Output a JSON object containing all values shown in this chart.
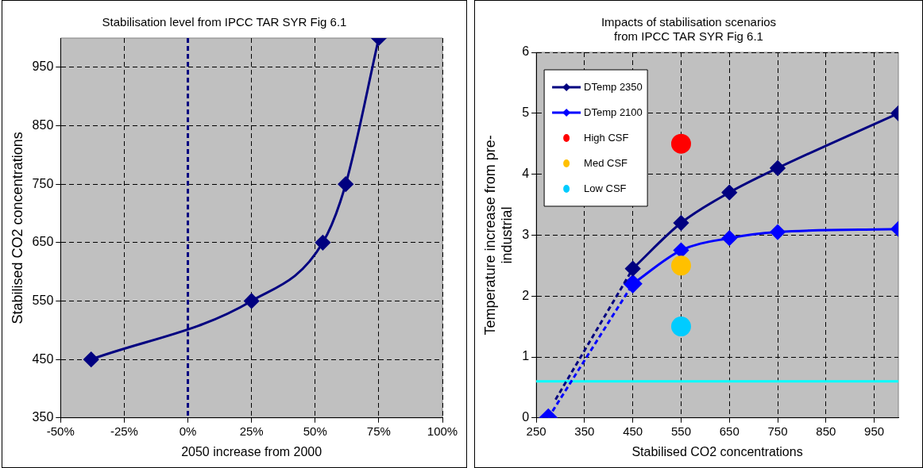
{
  "chart_data": [
    {
      "type": "line",
      "title": "Stabilisation level from IPCC TAR SYR Fig 6.1",
      "xlabel": "2050 increase from 2000",
      "ylabel": "Stabilised CO2 concentrations",
      "xlim": [
        -50,
        100
      ],
      "xticks": [
        {
          "value": -50,
          "label": "-50%"
        },
        {
          "value": -25,
          "label": "-25%"
        },
        {
          "value": 0,
          "label": "0%"
        },
        {
          "value": 25,
          "label": "25%"
        },
        {
          "value": 50,
          "label": "50%"
        },
        {
          "value": 75,
          "label": "75%"
        },
        {
          "value": 100,
          "label": "100%"
        }
      ],
      "ylim": [
        350,
        1000
      ],
      "yticks": [
        350,
        450,
        550,
        650,
        750,
        850,
        950
      ],
      "grid": true,
      "legend": false,
      "marker": "diamond",
      "series": [
        {
          "color": "#000080",
          "x": [
            -38,
            25,
            53,
            62,
            75
          ],
          "values": [
            450,
            550,
            650,
            750,
            1000
          ]
        }
      ],
      "ref_lines": [
        {
          "axis": "x",
          "value": 0,
          "color": "#000080",
          "line_style": "dashed"
        }
      ]
    },
    {
      "type": "line",
      "title": "Impacts of stabilisation scenarios\nfrom IPCC TAR SYR Fig 6.1",
      "xlabel": "Stabilised CO2 concentrations",
      "ylabel": "Temperature increase from pre-\nindustrial",
      "xlim": [
        250,
        1000
      ],
      "xticks": [
        250,
        350,
        450,
        550,
        650,
        750,
        850,
        950
      ],
      "ylim": [
        0,
        6
      ],
      "yticks": [
        0,
        1,
        2,
        3,
        4,
        5,
        6
      ],
      "grid": true,
      "legend": "top left",
      "marker": "diamond",
      "series": [
        {
          "name": "DTemp 2350",
          "color": "#000080",
          "x": [
            450,
            550,
            650,
            750,
            1000
          ],
          "values": [
            2.45,
            3.2,
            3.7,
            4.1,
            5
          ]
        },
        {
          "name": "DTemp 2100",
          "color": "#0000ff",
          "x": [
            450,
            550,
            650,
            750,
            1000
          ],
          "values": [
            2.2,
            2.75,
            2.95,
            3.05,
            3.1
          ]
        },
        {
          "name": "High CSF",
          "type": "scatter",
          "marker": "circle",
          "color": "#ff0000",
          "x": [
            550
          ],
          "values": [
            4.5
          ]
        },
        {
          "name": "Med CSF",
          "type": "scatter",
          "marker": "circle",
          "color": "#ffc000",
          "x": [
            550
          ],
          "values": [
            2.5
          ]
        },
        {
          "name": "Low CSF",
          "type": "scatter",
          "marker": "circle",
          "color": "#00ccff",
          "x": [
            550
          ],
          "values": [
            1.5
          ]
        },
        {
          "color": "#000080",
          "line_style": "dashed",
          "marker": "none",
          "x": [
            290,
            450
          ],
          "values": [
            0.3,
            2.45
          ]
        },
        {
          "color": "#0000ff",
          "line_style": "dashed",
          "x": [
            275,
            450
          ],
          "values": [
            0,
            2.2
          ]
        }
      ],
      "ref_lines": [
        {
          "axis": "y",
          "value": 0.6,
          "color": "#00ffff",
          "line_style": "solid"
        }
      ]
    }
  ]
}
